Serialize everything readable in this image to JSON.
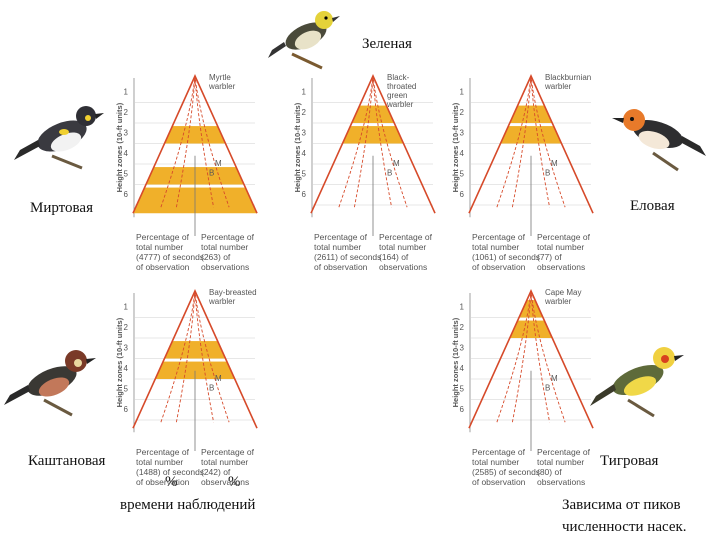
{
  "labels": {
    "green": "Зеленая",
    "myrtle": "Миртовая",
    "spruce": "Еловая",
    "chestnut": "Каштановая",
    "tiger": "Тигровая",
    "pct_left": "%",
    "pct_right": "%",
    "obs_time": "времени  наблюдений",
    "depends_1": "Зависима от пиков",
    "depends_2": "численности насек."
  },
  "axis": {
    "ylabel": "Height zones (10-ft units)",
    "zones": [
      "1",
      "2",
      "3",
      "4",
      "5",
      "6"
    ],
    "marker_m": "M",
    "marker_b": "B"
  },
  "colors": {
    "line": "#d64a2a",
    "fill": "#f0b02a",
    "axis": "#888888"
  },
  "chart_data": [
    {
      "type": "diagram",
      "species": "Myrtle warbler",
      "title": "Myrtle\nwarbler",
      "left_caption": "Percentage of\ntotal number\n(4777) of seconds\nof observation",
      "right_caption": "Percentage of\ntotal number\n(263) of\nobservations",
      "shaded_zones": [
        3,
        5,
        6
      ]
    },
    {
      "type": "diagram",
      "species": "Black-throated green warbler",
      "title": "Black-\nthroated\ngreen\nwarbler",
      "left_caption": "Percentage of\ntotal number\n(2611) of seconds\nof observation",
      "right_caption": "Percentage of\ntotal number\n(164) of\nobservations",
      "shaded_zones": [
        2,
        3
      ]
    },
    {
      "type": "diagram",
      "species": "Blackburnian warbler",
      "title": "Blackburnian\nwarbler",
      "left_caption": "Percentage of\ntotal number\n(1061) of seconds\nof observation",
      "right_caption": "Percentage of\ntotal number\n(77) of\nobservations",
      "shaded_zones": [
        2,
        3
      ]
    },
    {
      "type": "diagram",
      "species": "Bay-breasted warbler",
      "title": "Bay-breasted\nwarbler",
      "left_caption": "Percentage of\ntotal number\n(1488) of seconds\nof observation",
      "right_caption": "Percentage of\ntotal number\n(242) of\nobservations",
      "shaded_zones": [
        3,
        4
      ]
    },
    {
      "type": "diagram",
      "species": "Cape May warbler",
      "title": "Cape May\nwarbler",
      "left_caption": "Percentage of\ntotal number\n(2585) of seconds\nof observation",
      "right_caption": "Percentage of\ntotal number\n(80) of\nobservations",
      "shaded_zones": [
        1,
        2
      ]
    }
  ]
}
